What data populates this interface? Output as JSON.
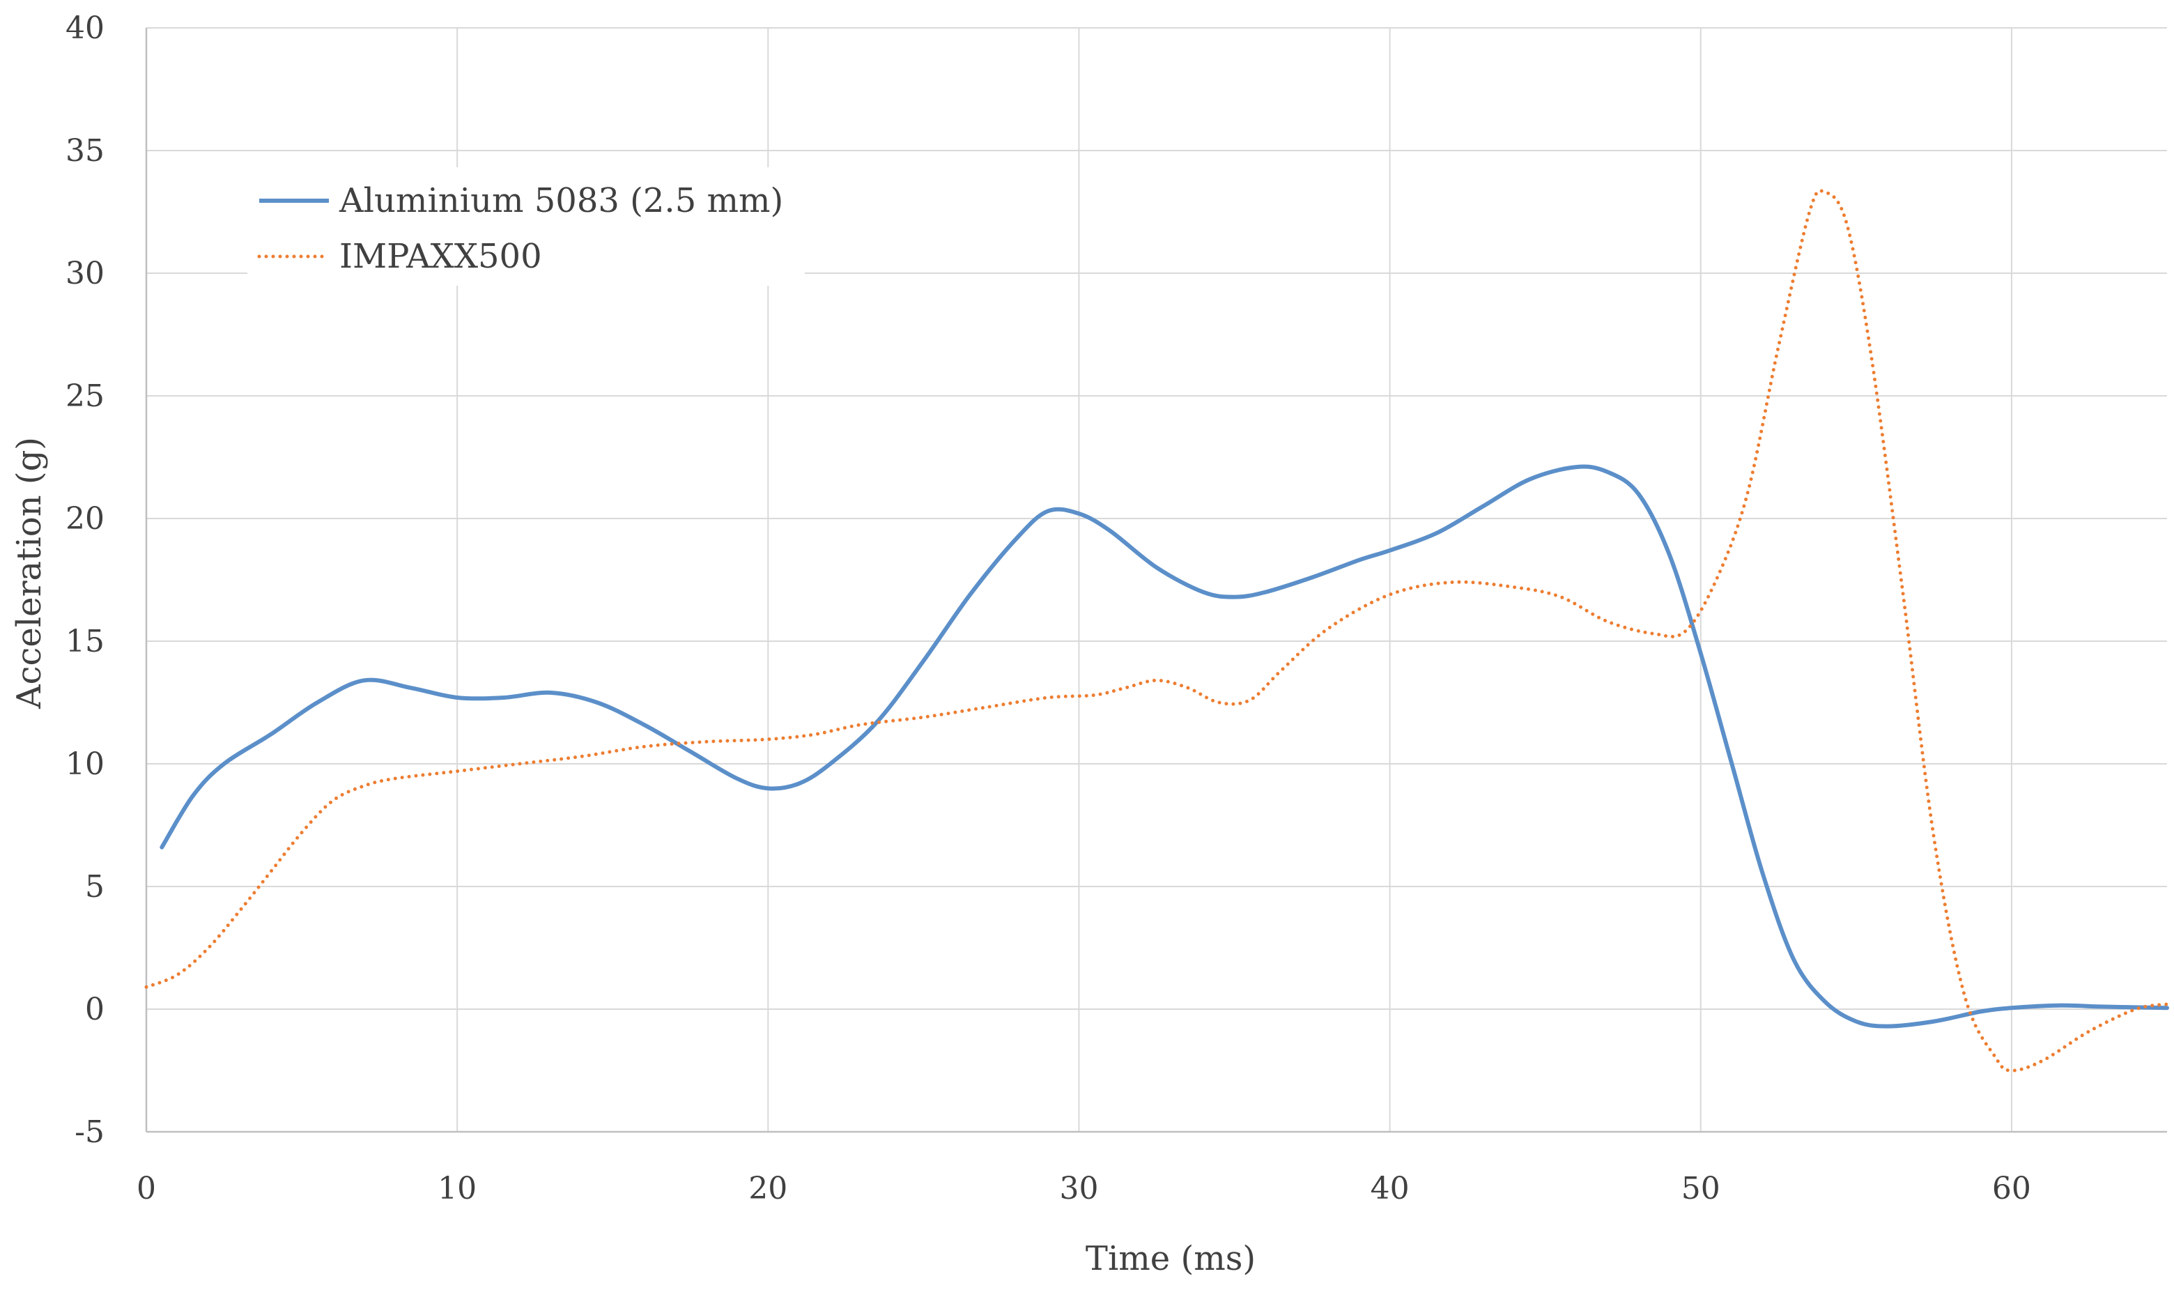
{
  "chart_data": {
    "type": "line",
    "title": "",
    "xlabel": "Time (ms)",
    "ylabel": "Acceleration (g)",
    "xlim": [
      0,
      65
    ],
    "ylim": [
      -5,
      40
    ],
    "x_ticks": [
      0,
      10,
      20,
      30,
      40,
      50,
      60
    ],
    "y_ticks": [
      -5,
      0,
      5,
      10,
      15,
      20,
      25,
      30,
      35,
      40
    ],
    "grid": true,
    "legend_position": "top-left",
    "series": [
      {
        "name": "Aluminium 5083 (2.5 mm)",
        "style": "solid",
        "color": "#5b8fc9",
        "points": [
          [
            0.5,
            6.6
          ],
          [
            1.5,
            8.7
          ],
          [
            2.5,
            10.0
          ],
          [
            4,
            11.2
          ],
          [
            5.5,
            12.5
          ],
          [
            7,
            13.4
          ],
          [
            8.5,
            13.1
          ],
          [
            10,
            12.7
          ],
          [
            11.5,
            12.7
          ],
          [
            13,
            12.9
          ],
          [
            14.5,
            12.5
          ],
          [
            16,
            11.6
          ],
          [
            17.5,
            10.5
          ],
          [
            19,
            9.4
          ],
          [
            20,
            9.0
          ],
          [
            21,
            9.2
          ],
          [
            22,
            10.0
          ],
          [
            23.5,
            11.7
          ],
          [
            25,
            14.2
          ],
          [
            26.5,
            16.9
          ],
          [
            28,
            19.2
          ],
          [
            29,
            20.3
          ],
          [
            30,
            20.2
          ],
          [
            31,
            19.5
          ],
          [
            32.5,
            18.0
          ],
          [
            34,
            17.0
          ],
          [
            35,
            16.8
          ],
          [
            36,
            17.0
          ],
          [
            37.5,
            17.6
          ],
          [
            39,
            18.3
          ],
          [
            40,
            18.7
          ],
          [
            41.5,
            19.4
          ],
          [
            43,
            20.5
          ],
          [
            44.5,
            21.6
          ],
          [
            46,
            22.1
          ],
          [
            47,
            21.9
          ],
          [
            48,
            21.0
          ],
          [
            49,
            18.5
          ],
          [
            50,
            14.5
          ],
          [
            51,
            10.0
          ],
          [
            52,
            5.5
          ],
          [
            53,
            2.0
          ],
          [
            54,
            0.3
          ],
          [
            55,
            -0.5
          ],
          [
            56,
            -0.7
          ],
          [
            57.5,
            -0.5
          ],
          [
            59,
            -0.1
          ],
          [
            60,
            0.05
          ],
          [
            61.5,
            0.15
          ],
          [
            63,
            0.1
          ],
          [
            65,
            0.05
          ]
        ]
      },
      {
        "name": "IMPAXX500",
        "style": "dotted",
        "color": "#ed7d31",
        "points": [
          [
            0,
            0.9
          ],
          [
            1,
            1.4
          ],
          [
            2,
            2.5
          ],
          [
            3,
            4.0
          ],
          [
            4,
            5.6
          ],
          [
            5,
            7.2
          ],
          [
            6,
            8.5
          ],
          [
            7,
            9.1
          ],
          [
            8,
            9.4
          ],
          [
            10,
            9.7
          ],
          [
            12,
            10.0
          ],
          [
            14,
            10.3
          ],
          [
            16,
            10.7
          ],
          [
            18,
            10.9
          ],
          [
            20,
            11.0
          ],
          [
            21.5,
            11.2
          ],
          [
            23,
            11.6
          ],
          [
            25,
            11.9
          ],
          [
            27,
            12.3
          ],
          [
            29,
            12.7
          ],
          [
            30.5,
            12.8
          ],
          [
            31.5,
            13.1
          ],
          [
            32.5,
            13.4
          ],
          [
            33.5,
            13.1
          ],
          [
            34.5,
            12.5
          ],
          [
            35.5,
            12.6
          ],
          [
            36.5,
            13.8
          ],
          [
            38,
            15.5
          ],
          [
            40,
            16.9
          ],
          [
            42,
            17.4
          ],
          [
            44,
            17.2
          ],
          [
            45.5,
            16.8
          ],
          [
            47,
            15.8
          ],
          [
            48.5,
            15.3
          ],
          [
            49.5,
            15.4
          ],
          [
            50.5,
            17.5
          ],
          [
            51.5,
            21.0
          ],
          [
            52.5,
            27.0
          ],
          [
            53.5,
            32.5
          ],
          [
            54,
            33.3
          ],
          [
            54.7,
            32.0
          ],
          [
            55.5,
            26.5
          ],
          [
            56.5,
            17.0
          ],
          [
            57.5,
            7.0
          ],
          [
            58.5,
            0.5
          ],
          [
            59.5,
            -2.0
          ],
          [
            60,
            -2.5
          ],
          [
            61,
            -2.1
          ],
          [
            62.5,
            -0.9
          ],
          [
            64,
            0.0
          ],
          [
            65,
            0.2
          ]
        ]
      }
    ]
  }
}
